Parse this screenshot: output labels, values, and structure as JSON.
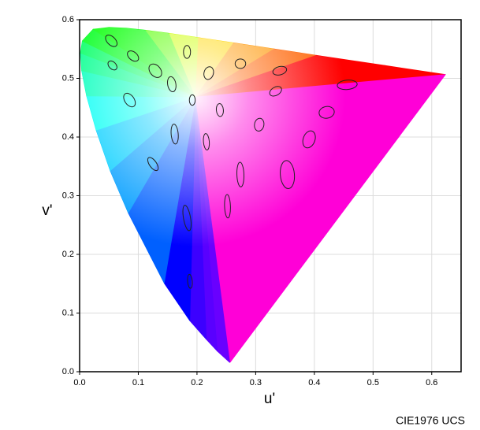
{
  "chart_data": {
    "type": "chromaticity",
    "x_label": "u'",
    "y_label": "v'",
    "footer": "CIE1976 UCS",
    "xlim": [
      0,
      0.65
    ],
    "ylim": [
      0,
      0.6
    ],
    "xticks": [
      {
        "value": 0,
        "label": "0.0"
      },
      0.1,
      0.2,
      0.3,
      0.4,
      0.5,
      0.6
    ],
    "yticks": [
      {
        "value": 0,
        "label": "0.0"
      },
      0.1,
      0.2,
      0.3,
      0.4,
      0.5,
      0.6
    ],
    "grid": true,
    "spectral_locus": {
      "u": [
        0.2568,
        0.2557,
        0.2347,
        0.216,
        0.1877,
        0.1441,
        0.0828,
        0.0521,
        0.0282,
        0.0119,
        0.0035,
        0.0014,
        0.0046,
        0.0231,
        0.0501,
        0.0792,
        0.1127,
        0.1531,
        0.2026,
        0.2623,
        0.3315,
        0.4035,
        0.5203,
        0.6234
      ],
      "v": [
        0.0165,
        0.0159,
        0.035,
        0.055,
        0.0871,
        0.151,
        0.2708,
        0.3427,
        0.4117,
        0.47,
        0.513,
        0.5431,
        0.5638,
        0.5837,
        0.5868,
        0.5856,
        0.5821,
        0.5766,
        0.5694,
        0.5605,
        0.5501,
        0.5393,
        0.5219,
        0.5065
      ]
    },
    "ellipses": [
      {
        "u": 0.054,
        "v": 0.564,
        "a": 0.012,
        "b": 0.007,
        "angle": -45
      },
      {
        "u": 0.056,
        "v": 0.522,
        "a": 0.009,
        "b": 0.006,
        "angle": -45
      },
      {
        "u": 0.091,
        "v": 0.538,
        "a": 0.011,
        "b": 0.007,
        "angle": -40
      },
      {
        "u": 0.129,
        "v": 0.513,
        "a": 0.013,
        "b": 0.009,
        "angle": -50
      },
      {
        "u": 0.183,
        "v": 0.545,
        "a": 0.011,
        "b": 0.006,
        "angle": 90
      },
      {
        "u": 0.22,
        "v": 0.509,
        "a": 0.011,
        "b": 0.008,
        "angle": 75
      },
      {
        "u": 0.274,
        "v": 0.525,
        "a": 0.009,
        "b": 0.008,
        "angle": 0
      },
      {
        "u": 0.341,
        "v": 0.513,
        "a": 0.012,
        "b": 0.007,
        "angle": 15
      },
      {
        "u": 0.456,
        "v": 0.489,
        "a": 0.017,
        "b": 0.008,
        "angle": 5
      },
      {
        "u": 0.157,
        "v": 0.49,
        "a": 0.013,
        "b": 0.007,
        "angle": 100
      },
      {
        "u": 0.085,
        "v": 0.463,
        "a": 0.013,
        "b": 0.008,
        "angle": -55
      },
      {
        "u": 0.192,
        "v": 0.463,
        "a": 0.009,
        "b": 0.005,
        "angle": 90
      },
      {
        "u": 0.334,
        "v": 0.478,
        "a": 0.011,
        "b": 0.007,
        "angle": 30
      },
      {
        "u": 0.239,
        "v": 0.446,
        "a": 0.011,
        "b": 0.006,
        "angle": 95
      },
      {
        "u": 0.421,
        "v": 0.442,
        "a": 0.013,
        "b": 0.01,
        "angle": 10
      },
      {
        "u": 0.306,
        "v": 0.421,
        "a": 0.011,
        "b": 0.008,
        "angle": 80
      },
      {
        "u": 0.162,
        "v": 0.405,
        "a": 0.017,
        "b": 0.006,
        "angle": 95
      },
      {
        "u": 0.216,
        "v": 0.392,
        "a": 0.014,
        "b": 0.005,
        "angle": 95
      },
      {
        "u": 0.391,
        "v": 0.396,
        "a": 0.015,
        "b": 0.01,
        "angle": 70
      },
      {
        "u": 0.125,
        "v": 0.354,
        "a": 0.013,
        "b": 0.006,
        "angle": 125
      },
      {
        "u": 0.274,
        "v": 0.336,
        "a": 0.021,
        "b": 0.006,
        "angle": 92
      },
      {
        "u": 0.354,
        "v": 0.336,
        "a": 0.024,
        "b": 0.012,
        "angle": 95
      },
      {
        "u": 0.183,
        "v": 0.262,
        "a": 0.022,
        "b": 0.006,
        "angle": 100
      },
      {
        "u": 0.252,
        "v": 0.282,
        "a": 0.02,
        "b": 0.005,
        "angle": 92
      },
      {
        "u": 0.188,
        "v": 0.154,
        "a": 0.012,
        "b": 0.004,
        "angle": 95
      }
    ]
  }
}
